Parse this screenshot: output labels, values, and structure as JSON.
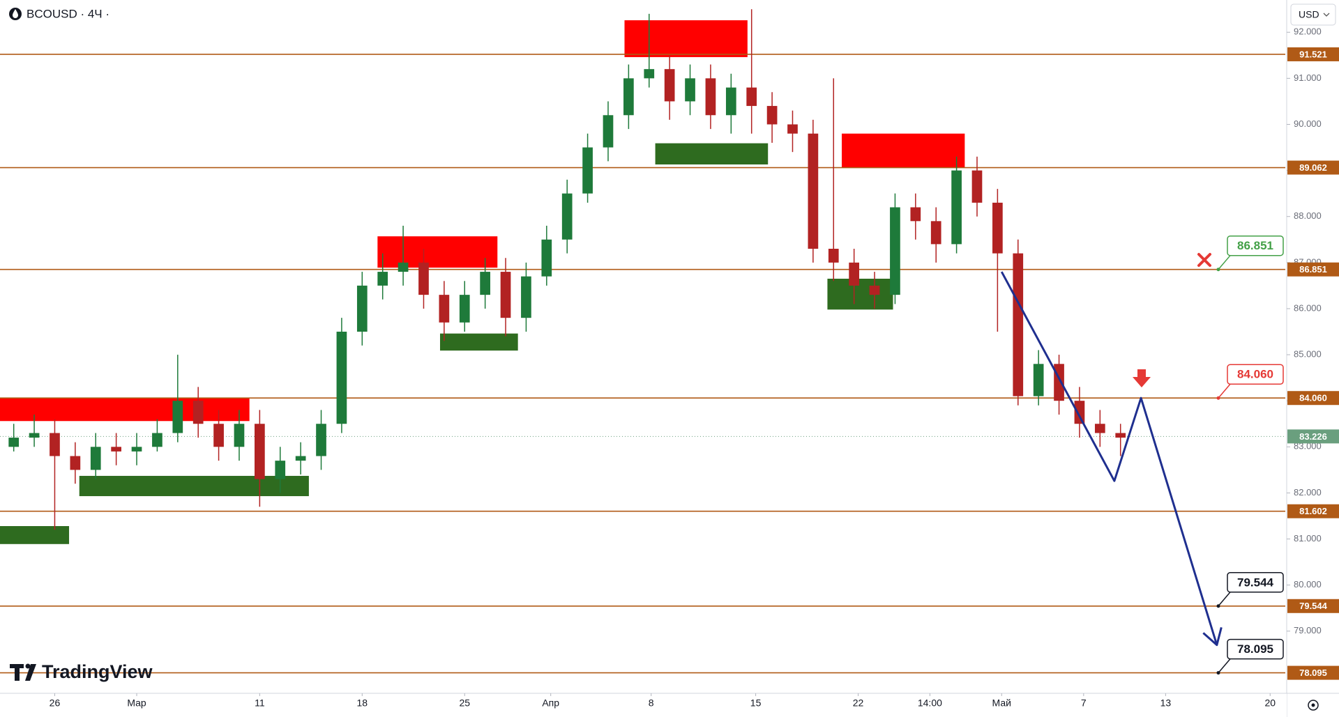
{
  "chart_data": {
    "type": "candlestick",
    "title": "BCOUSD · 4Ч ·",
    "currency": "USD",
    "watermark": "TradingView",
    "up_color": "#1e7a3a",
    "down_color": "#b22222",
    "x": [
      -2,
      -1,
      0,
      1,
      2,
      3,
      4,
      5,
      6,
      7,
      8,
      9,
      10,
      11,
      12,
      13,
      14,
      15,
      16,
      17,
      18,
      19,
      20,
      21,
      22,
      23,
      24,
      25,
      26,
      27,
      28,
      29,
      30,
      31,
      32,
      33,
      34,
      35,
      36,
      37,
      38,
      39,
      40,
      41,
      42,
      43,
      44,
      45,
      46,
      47,
      48,
      49,
      50,
      51,
      52
    ],
    "open": [
      83.0,
      83.2,
      83.3,
      82.8,
      82.5,
      83.0,
      82.9,
      83.0,
      83.3,
      84.0,
      83.5,
      83.0,
      83.5,
      82.3,
      82.7,
      82.8,
      83.5,
      85.5,
      86.5,
      86.8,
      87.0,
      86.3,
      85.7,
      86.3,
      86.8,
      85.8,
      86.7,
      87.5,
      88.5,
      89.5,
      90.2,
      91.0,
      91.2,
      90.5,
      91.0,
      90.2,
      90.8,
      90.4,
      90.0,
      89.8,
      87.3,
      87.0,
      86.5,
      86.3,
      88.2,
      87.9,
      87.4,
      89.0,
      88.3,
      87.2,
      84.1,
      84.8,
      84.0,
      83.5,
      83.3
    ],
    "high": [
      83.5,
      83.7,
      83.6,
      83.1,
      83.3,
      83.3,
      83.3,
      83.6,
      85.0,
      84.3,
      83.8,
      83.8,
      83.8,
      83.0,
      83.1,
      83.8,
      85.8,
      86.8,
      87.2,
      87.8,
      87.3,
      86.6,
      86.6,
      87.1,
      87.1,
      87.0,
      87.8,
      88.8,
      89.8,
      90.5,
      91.3,
      92.4,
      91.5,
      91.3,
      91.3,
      91.1,
      92.5,
      90.7,
      90.3,
      90.1,
      91.0,
      87.3,
      86.8,
      88.5,
      88.5,
      88.2,
      89.3,
      89.3,
      88.6,
      87.5,
      85.1,
      85.0,
      84.3,
      83.8,
      83.5
    ],
    "low": [
      82.9,
      83.0,
      81.2,
      82.2,
      82.3,
      82.6,
      82.6,
      82.9,
      83.1,
      83.2,
      82.7,
      82.7,
      81.7,
      82.0,
      82.4,
      82.5,
      83.3,
      85.2,
      86.2,
      86.5,
      86.0,
      85.3,
      85.5,
      86.0,
      85.4,
      85.5,
      86.5,
      87.2,
      88.3,
      89.2,
      89.9,
      90.8,
      90.1,
      90.2,
      89.9,
      89.8,
      89.8,
      89.6,
      89.4,
      87.0,
      86.6,
      86.1,
      86.0,
      86.1,
      87.5,
      87.0,
      87.2,
      88.0,
      85.5,
      83.9,
      83.9,
      83.7,
      83.2,
      83.0,
      82.8
    ],
    "close": [
      83.2,
      83.3,
      82.8,
      82.5,
      83.0,
      82.9,
      83.0,
      83.3,
      84.0,
      83.5,
      83.0,
      83.5,
      82.3,
      82.7,
      82.8,
      83.5,
      85.5,
      86.5,
      86.8,
      87.0,
      86.3,
      85.7,
      86.3,
      86.8,
      85.8,
      86.7,
      87.5,
      88.5,
      89.5,
      90.2,
      91.0,
      91.2,
      90.5,
      91.0,
      90.2,
      90.8,
      90.4,
      90.0,
      89.8,
      87.3,
      87.0,
      86.5,
      86.3,
      88.2,
      87.9,
      87.4,
      89.0,
      88.3,
      87.2,
      84.1,
      84.8,
      84.0,
      83.5,
      83.3,
      83.2
    ],
    "xlim": [
      -2.67,
      60.04
    ],
    "xticks": [
      {
        "value": 0,
        "label": "26"
      },
      {
        "value": 4,
        "label": "Мар"
      },
      {
        "value": 10,
        "label": "11"
      },
      {
        "value": 15,
        "label": "18"
      },
      {
        "value": 20,
        "label": "25"
      },
      {
        "value": 24.2,
        "label": "Апр"
      },
      {
        "value": 29.1,
        "label": "8"
      },
      {
        "value": 34.2,
        "label": "15"
      },
      {
        "value": 39.2,
        "label": "22"
      },
      {
        "value": 42.7,
        "label": "14:00"
      },
      {
        "value": 46.2,
        "label": "Май"
      },
      {
        "value": 50.2,
        "label": "7"
      },
      {
        "value": 54.2,
        "label": "13"
      },
      {
        "value": 59.3,
        "label": "20"
      }
    ],
    "ylim": [
      77.65,
      92.7
    ],
    "yticks": [
      {
        "value": 79,
        "label": "79.000"
      },
      {
        "value": 80,
        "label": "80.000"
      },
      {
        "value": 81,
        "label": "81.000"
      },
      {
        "value": 82,
        "label": "82.000"
      },
      {
        "value": 83,
        "label": "83.000"
      },
      {
        "value": 84,
        "label": "84.000"
      },
      {
        "value": 85,
        "label": "85.000"
      },
      {
        "value": 86,
        "label": "86.000"
      },
      {
        "value": 87,
        "label": "87.000"
      },
      {
        "value": 88,
        "label": "88.000"
      },
      {
        "value": 89,
        "label": "89.000"
      },
      {
        "value": 90,
        "label": "90.000"
      },
      {
        "value": 91,
        "label": "91.000"
      },
      {
        "value": 92,
        "label": "92.000"
      }
    ],
    "level_color": "#b05a16",
    "levels": [
      {
        "value": 91.521,
        "label": "91.521"
      },
      {
        "value": 89.062,
        "label": "89.062"
      },
      {
        "value": 86.851,
        "label": "86.851"
      },
      {
        "value": 84.06,
        "label": "84.060"
      },
      {
        "value": 81.602,
        "label": "81.602"
      },
      {
        "value": 79.544,
        "label": "79.544"
      },
      {
        "value": 78.095,
        "label": "78.095"
      }
    ],
    "last_price": {
      "value": 83.226,
      "label": "83.226",
      "color": "#6a9f7e"
    },
    "zones": [
      {
        "x": [
          -2.67,
          9.5
        ],
        "y": [
          83.56,
          84.06
        ],
        "color": "#ff0000"
      },
      {
        "x": [
          -2.67,
          0.7
        ],
        "y": [
          80.89,
          81.28
        ],
        "color": "#2e6b1f"
      },
      {
        "x": [
          1.2,
          12.4
        ],
        "y": [
          81.93,
          82.37
        ],
        "color": "#2e6b1f"
      },
      {
        "x": [
          15.75,
          21.6
        ],
        "y": [
          86.89,
          87.57
        ],
        "color": "#ff0000"
      },
      {
        "x": [
          18.8,
          22.6
        ],
        "y": [
          85.09,
          85.46
        ],
        "color": "#2e6b1f"
      },
      {
        "x": [
          27.8,
          33.8
        ],
        "y": [
          91.46,
          92.26
        ],
        "color": "#ff0000"
      },
      {
        "x": [
          29.3,
          34.8
        ],
        "y": [
          89.13,
          89.59
        ],
        "color": "#2e6b1f"
      },
      {
        "x": [
          38.4,
          44.4
        ],
        "y": [
          89.06,
          89.8
        ],
        "color": "#ff0000"
      },
      {
        "x": [
          37.7,
          40.9
        ],
        "y": [
          85.98,
          86.65
        ],
        "color": "#2e6b1f"
      }
    ],
    "projection": {
      "x": [
        46.2,
        51.7,
        53.0,
        56.7
      ],
      "y": [
        86.8,
        82.26,
        84.06,
        78.7
      ],
      "color": "#1f2f8f"
    },
    "callouts": [
      {
        "value": 86.851,
        "label": "86.851",
        "color": "#43a047"
      },
      {
        "value": 84.06,
        "label": "84.060",
        "color": "#e53935"
      },
      {
        "value": 79.544,
        "label": "79.544",
        "color": "#131722"
      },
      {
        "value": 78.095,
        "label": "78.095",
        "color": "#131722"
      }
    ]
  }
}
